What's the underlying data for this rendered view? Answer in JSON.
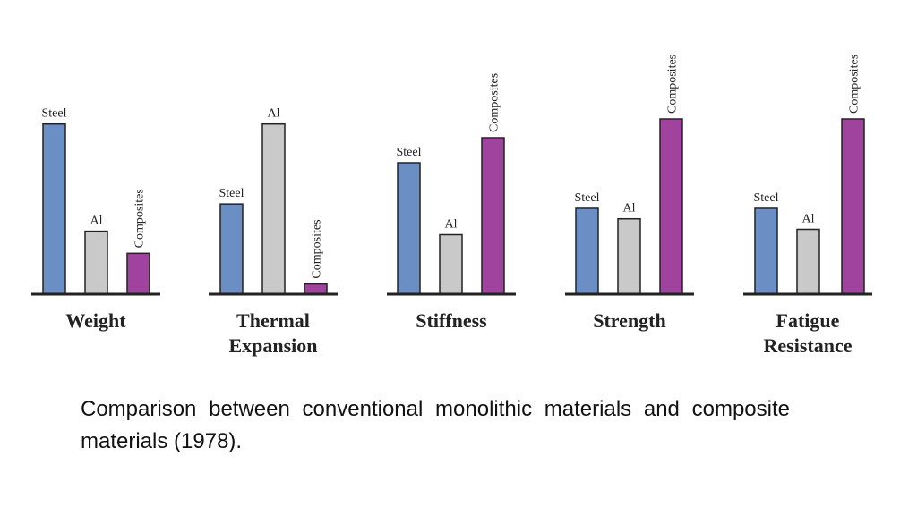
{
  "caption": "Comparison between conventional monolithic materials and composite materials (1978).",
  "colors": {
    "Steel": "#6b8fc4",
    "Al": "#c9c9c9",
    "Composites": "#a0439e"
  },
  "chart_data": [
    {
      "type": "bar",
      "title": "Weight",
      "categories": [
        "Steel",
        "Al",
        "Composites"
      ],
      "values": [
        1.0,
        0.37,
        0.24
      ],
      "ylim": [
        0,
        1.03
      ]
    },
    {
      "type": "bar",
      "title": "Thermal Expansion",
      "categories": [
        "Steel",
        "Al",
        "Composites"
      ],
      "values": [
        0.53,
        1.0,
        0.06
      ],
      "ylim": [
        0,
        1.03
      ]
    },
    {
      "type": "bar",
      "title": "Stiffness",
      "categories": [
        "Steel",
        "Al",
        "Composites"
      ],
      "values": [
        0.84,
        0.38,
        1.0
      ],
      "ylim": [
        0,
        1.12
      ]
    },
    {
      "type": "bar",
      "title": "Strength",
      "categories": [
        "Steel",
        "Al",
        "Composites"
      ],
      "values": [
        0.49,
        0.43,
        1.0
      ],
      "ylim": [
        0,
        1.0
      ]
    },
    {
      "type": "bar",
      "title": "Fatigue Resistance",
      "categories": [
        "Steel",
        "Al",
        "Composites"
      ],
      "values": [
        0.49,
        0.37,
        1.0
      ],
      "ylim": [
        0,
        1.0
      ]
    }
  ]
}
